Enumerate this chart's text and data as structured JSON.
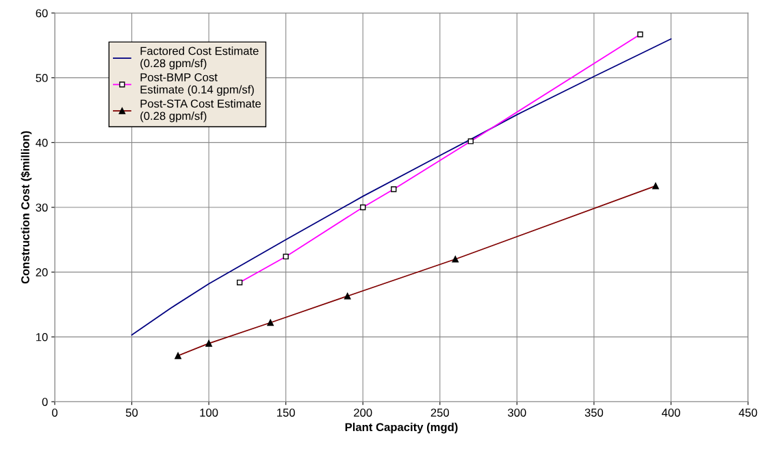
{
  "chart_data": {
    "type": "line",
    "xlabel": "Plant Capacity (mgd)",
    "ylabel": "Construction Cost ($million)",
    "xlim": [
      0,
      450
    ],
    "xticks": [
      0,
      50,
      100,
      150,
      200,
      250,
      300,
      350,
      400,
      450
    ],
    "ylim": [
      0,
      60
    ],
    "yticks": [
      0,
      10,
      20,
      30,
      40,
      50,
      60
    ],
    "grid": true,
    "legend": "top left",
    "series": [
      {
        "name": "Factored Cost Estimate\n(0.28 gpm/sf)",
        "color": "#000080",
        "marker": "none",
        "x": [
          50,
          75,
          100,
          150,
          200,
          250,
          270,
          300,
          350,
          400
        ],
        "values": [
          10.3,
          14.4,
          18.2,
          25.0,
          31.7,
          38.0,
          40.5,
          44.3,
          50.2,
          56.0
        ]
      },
      {
        "name": "Post-BMP Cost\nEstimate (0.14 gpm/sf)",
        "color": "#ff00ff",
        "marker": "square",
        "x": [
          120,
          150,
          200,
          220,
          270,
          380
        ],
        "values": [
          18.4,
          22.4,
          30.0,
          32.8,
          40.2,
          56.7
        ]
      },
      {
        "name": "Post-STA Cost Estimate\n(0.28 gpm/sf)",
        "color": "#800000",
        "marker": "triangle",
        "x": [
          80,
          100,
          140,
          190,
          260,
          390
        ],
        "values": [
          7.1,
          9.0,
          12.2,
          16.3,
          22.0,
          33.3
        ]
      }
    ]
  }
}
